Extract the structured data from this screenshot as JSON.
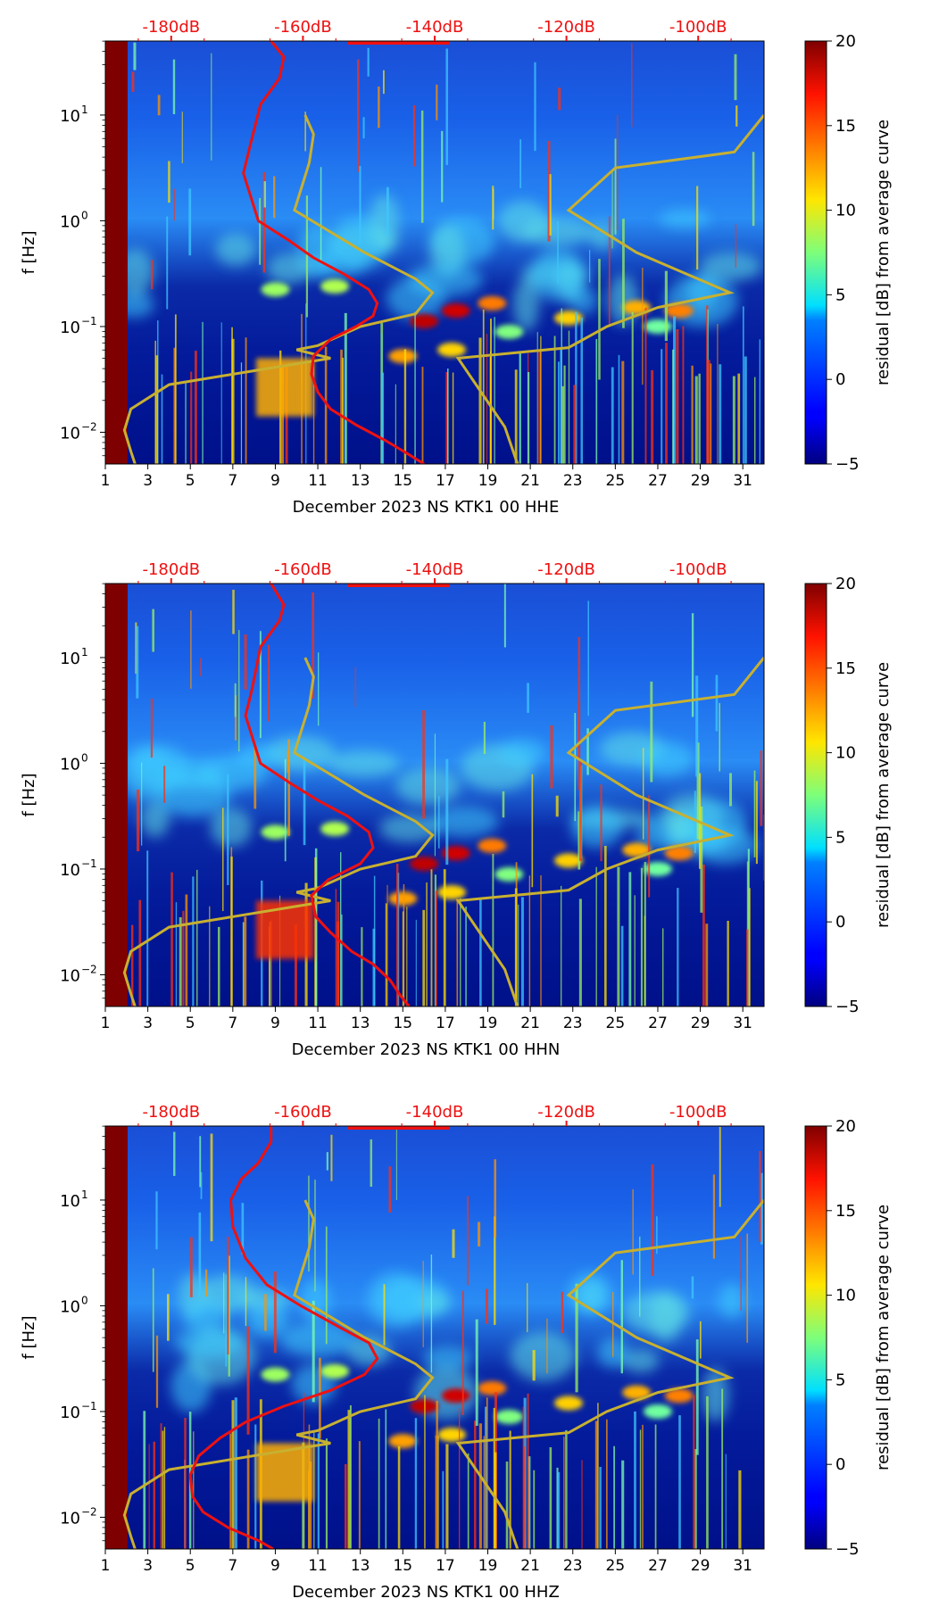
{
  "colors": {
    "psd_curve": "#ee1111",
    "nlnm_nhnm": "#c8b030",
    "top_axis_label": "#ee1111"
  },
  "chart_data": [
    {
      "type": "heatmap",
      "title": "",
      "xlabel": "December 2023 NS KTK1 00 HHE",
      "ylabel": "f [Hz]",
      "colorbar_label": "residual [dB] from average curve",
      "colorbar_ticks": [
        "20",
        "15",
        "10",
        "5",
        "0",
        "−5"
      ],
      "colorbar_range": [
        -5,
        20
      ],
      "x_ticks": [
        "1",
        "3",
        "5",
        "7",
        "9",
        "11",
        "13",
        "15",
        "17",
        "19",
        "21",
        "23",
        "25",
        "27",
        "29",
        "31"
      ],
      "x_range": [
        1,
        32
      ],
      "y_ticks": [
        "10",
        "10",
        "10",
        "10"
      ],
      "y_tick_exponents": [
        "1",
        "0",
        "−1",
        "−2"
      ],
      "y_range_log10": [
        -2.3,
        1.7
      ],
      "top_ticks": [
        "-180dB",
        "-160dB",
        "-140dB",
        "-120dB",
        "-100dB"
      ],
      "top_range_db": [
        -190,
        -90
      ],
      "psd_curve": [
        [
          8.8,
          1.7
        ],
        [
          9.4,
          1.55
        ],
        [
          9.2,
          1.35
        ],
        [
          8.3,
          1.1
        ],
        [
          7.8,
          0.7
        ],
        [
          7.5,
          0.45
        ],
        [
          8.2,
          0.0
        ],
        [
          9.6,
          -0.18
        ],
        [
          10.8,
          -0.35
        ],
        [
          12.2,
          -0.5
        ],
        [
          13.4,
          -0.65
        ],
        [
          13.8,
          -0.78
        ],
        [
          13.6,
          -0.9
        ],
        [
          12.8,
          -1.0
        ],
        [
          11.6,
          -1.12
        ],
        [
          10.8,
          -1.28
        ],
        [
          10.7,
          -1.45
        ],
        [
          11.0,
          -1.62
        ],
        [
          11.6,
          -1.78
        ],
        [
          12.8,
          -1.93
        ],
        [
          14.2,
          -2.08
        ],
        [
          15.2,
          -2.2
        ],
        [
          16.0,
          -2.3
        ]
      ],
      "ref_curves": [
        [
          [
            10.4,
            1.0
          ],
          [
            10.8,
            0.82
          ],
          [
            10.6,
            0.55
          ],
          [
            9.9,
            0.1
          ],
          [
            13.2,
            -0.3
          ],
          [
            15.6,
            -0.55
          ],
          [
            16.4,
            -0.68
          ],
          [
            15.6,
            -0.88
          ],
          [
            13.0,
            -1.0
          ],
          [
            11.0,
            -1.18
          ],
          [
            10.0,
            -1.22
          ],
          [
            11.6,
            -1.3
          ],
          [
            4.0,
            -1.55
          ],
          [
            2.2,
            -1.78
          ],
          [
            1.9,
            -1.98
          ],
          [
            2.2,
            -2.18
          ],
          [
            2.4,
            -2.3
          ]
        ],
        [
          [
            32.0,
            1.0
          ],
          [
            30.6,
            0.65
          ],
          [
            25.0,
            0.5
          ],
          [
            22.8,
            0.1
          ],
          [
            26.0,
            -0.3
          ],
          [
            30.4,
            -0.68
          ],
          [
            27.0,
            -0.82
          ],
          [
            24.6,
            -1.0
          ],
          [
            22.8,
            -1.2
          ],
          [
            17.6,
            -1.3
          ],
          [
            19.8,
            -1.95
          ],
          [
            20.4,
            -2.3
          ]
        ]
      ]
    },
    {
      "type": "heatmap",
      "title": "",
      "xlabel": "December 2023 NS KTK1 00 HHN",
      "ylabel": "f [Hz]",
      "colorbar_label": "residual [dB] from average curve",
      "colorbar_ticks": [
        "20",
        "15",
        "10",
        "5",
        "0",
        "−5"
      ],
      "colorbar_range": [
        -5,
        20
      ],
      "x_ticks": [
        "1",
        "3",
        "5",
        "7",
        "9",
        "11",
        "13",
        "15",
        "17",
        "19",
        "21",
        "23",
        "25",
        "27",
        "29",
        "31"
      ],
      "x_range": [
        1,
        32
      ],
      "y_ticks": [
        "10",
        "10",
        "10",
        "10"
      ],
      "y_tick_exponents": [
        "1",
        "0",
        "−1",
        "−2"
      ],
      "y_range_log10": [
        -2.3,
        1.7
      ],
      "top_ticks": [
        "-180dB",
        "-160dB",
        "-140dB",
        "-120dB",
        "-100dB"
      ],
      "top_range_db": [
        -190,
        -90
      ],
      "psd_curve": [
        [
          8.8,
          1.7
        ],
        [
          9.4,
          1.5
        ],
        [
          9.2,
          1.35
        ],
        [
          8.3,
          1.1
        ],
        [
          7.9,
          0.7
        ],
        [
          7.6,
          0.45
        ],
        [
          8.3,
          0.0
        ],
        [
          9.8,
          -0.2
        ],
        [
          11.0,
          -0.35
        ],
        [
          12.4,
          -0.5
        ],
        [
          13.4,
          -0.65
        ],
        [
          13.6,
          -0.8
        ],
        [
          13.0,
          -0.95
        ],
        [
          11.5,
          -1.1
        ],
        [
          10.7,
          -1.25
        ],
        [
          10.9,
          -1.45
        ],
        [
          11.6,
          -1.6
        ],
        [
          12.6,
          -1.78
        ],
        [
          13.6,
          -1.9
        ],
        [
          14.4,
          -2.05
        ],
        [
          14.9,
          -2.2
        ],
        [
          15.3,
          -2.3
        ]
      ],
      "ref_curves": [
        [
          [
            10.4,
            1.0
          ],
          [
            10.8,
            0.82
          ],
          [
            10.6,
            0.55
          ],
          [
            9.9,
            0.1
          ],
          [
            13.2,
            -0.3
          ],
          [
            15.6,
            -0.55
          ],
          [
            16.4,
            -0.68
          ],
          [
            15.6,
            -0.88
          ],
          [
            13.0,
            -1.0
          ],
          [
            11.0,
            -1.18
          ],
          [
            10.0,
            -1.22
          ],
          [
            11.6,
            -1.3
          ],
          [
            4.0,
            -1.55
          ],
          [
            2.2,
            -1.78
          ],
          [
            1.9,
            -1.98
          ],
          [
            2.2,
            -2.18
          ],
          [
            2.4,
            -2.3
          ]
        ],
        [
          [
            32.0,
            1.0
          ],
          [
            30.6,
            0.65
          ],
          [
            25.0,
            0.5
          ],
          [
            22.8,
            0.1
          ],
          [
            26.0,
            -0.3
          ],
          [
            30.4,
            -0.68
          ],
          [
            27.0,
            -0.82
          ],
          [
            24.6,
            -1.0
          ],
          [
            22.8,
            -1.2
          ],
          [
            17.6,
            -1.3
          ],
          [
            19.8,
            -1.95
          ],
          [
            20.4,
            -2.3
          ]
        ]
      ]
    },
    {
      "type": "heatmap",
      "title": "",
      "xlabel": "December 2023 NS KTK1 00 HHZ",
      "ylabel": "f [Hz]",
      "colorbar_label": "residual [dB] from average curve",
      "colorbar_ticks": [
        "20",
        "15",
        "10",
        "5",
        "0",
        "−5"
      ],
      "colorbar_range": [
        -5,
        20
      ],
      "x_ticks": [
        "1",
        "3",
        "5",
        "7",
        "9",
        "11",
        "13",
        "15",
        "17",
        "19",
        "21",
        "23",
        "25",
        "27",
        "29",
        "31"
      ],
      "x_range": [
        1,
        32
      ],
      "y_ticks": [
        "10",
        "10",
        "10",
        "10"
      ],
      "y_tick_exponents": [
        "1",
        "0",
        "−1",
        "−2"
      ],
      "y_range_log10": [
        -2.3,
        1.7
      ],
      "top_ticks": [
        "-180dB",
        "-160dB",
        "-140dB",
        "-120dB",
        "-100dB"
      ],
      "top_range_db": [
        -190,
        -90
      ],
      "psd_curve": [
        [
          8.8,
          1.7
        ],
        [
          8.8,
          1.55
        ],
        [
          8.2,
          1.35
        ],
        [
          7.4,
          1.2
        ],
        [
          6.9,
          1.0
        ],
        [
          7.0,
          0.75
        ],
        [
          7.6,
          0.45
        ],
        [
          8.6,
          0.2
        ],
        [
          10.2,
          0.0
        ],
        [
          12.0,
          -0.2
        ],
        [
          13.4,
          -0.35
        ],
        [
          13.8,
          -0.5
        ],
        [
          13.2,
          -0.65
        ],
        [
          11.6,
          -0.8
        ],
        [
          9.4,
          -0.95
        ],
        [
          7.6,
          -1.1
        ],
        [
          6.4,
          -1.25
        ],
        [
          5.4,
          -1.42
        ],
        [
          5.0,
          -1.6
        ],
        [
          5.1,
          -1.8
        ],
        [
          5.6,
          -1.95
        ],
        [
          6.8,
          -2.1
        ],
        [
          8.2,
          -2.22
        ],
        [
          8.9,
          -2.3
        ]
      ],
      "ref_curves": [
        [
          [
            10.4,
            1.0
          ],
          [
            10.8,
            0.82
          ],
          [
            10.6,
            0.55
          ],
          [
            9.9,
            0.1
          ],
          [
            13.2,
            -0.3
          ],
          [
            15.6,
            -0.55
          ],
          [
            16.4,
            -0.68
          ],
          [
            15.6,
            -0.88
          ],
          [
            13.0,
            -1.0
          ],
          [
            11.0,
            -1.18
          ],
          [
            10.0,
            -1.22
          ],
          [
            11.6,
            -1.3
          ],
          [
            4.0,
            -1.55
          ],
          [
            2.2,
            -1.78
          ],
          [
            1.9,
            -1.98
          ],
          [
            2.2,
            -2.18
          ],
          [
            2.4,
            -2.3
          ]
        ],
        [
          [
            32.0,
            1.0
          ],
          [
            30.6,
            0.65
          ],
          [
            25.0,
            0.5
          ],
          [
            22.8,
            0.1
          ],
          [
            26.0,
            -0.3
          ],
          [
            30.4,
            -0.68
          ],
          [
            27.0,
            -0.82
          ],
          [
            24.6,
            -1.0
          ],
          [
            22.8,
            -1.2
          ],
          [
            17.6,
            -1.3
          ],
          [
            19.8,
            -1.95
          ],
          [
            20.4,
            -2.3
          ]
        ]
      ]
    }
  ]
}
